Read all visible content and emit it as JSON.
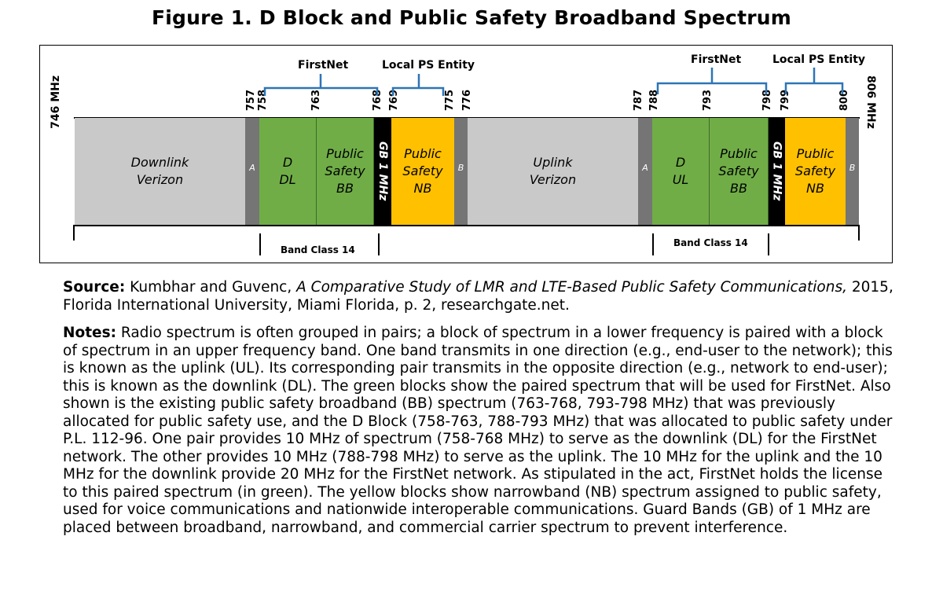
{
  "title": "Figure 1. D Block and Public Safety Broadband Spectrum",
  "edges": {
    "left": "746 MHz",
    "right": "806 MHz"
  },
  "headers": {
    "firstnet_1": "FirstNet",
    "local_1": "Local PS Entity",
    "firstnet_2": "FirstNet",
    "local_2": "Local PS Entity"
  },
  "freqs": {
    "f757": "757",
    "f758": "758",
    "f763": "763",
    "f768": "768",
    "f769": "769",
    "f775": "775",
    "f776": "776",
    "f787": "787",
    "f788": "788",
    "f793": "793",
    "f798": "798",
    "f799": "799",
    "f800": "800"
  },
  "blocks": {
    "downlink_verizon": [
      "Downlink",
      "Verizon"
    ],
    "a1": "A",
    "d_dl": [
      "D",
      "DL"
    ],
    "psbb1": [
      "Public",
      "Safety",
      "BB"
    ],
    "gb1": "GB 1 MHz",
    "psnb1": [
      "Public",
      "Safety",
      "NB"
    ],
    "b1": "B",
    "uplink_verizon": [
      "Uplink",
      "Verizon"
    ],
    "a2": "A",
    "d_ul": [
      "D",
      "UL"
    ],
    "psbb2": [
      "Public",
      "Safety",
      "BB"
    ],
    "gb2": "GB 1 MHz",
    "psnb2": [
      "Public",
      "Safety",
      "NB"
    ],
    "b2": "B"
  },
  "band_class": {
    "left": "Band Class 14",
    "right": "Band Class 14"
  },
  "colors": {
    "gray": "#c9c9c9",
    "guard": "#757575",
    "green": "#70ad47",
    "yellow": "#ffc000",
    "bracket": "#2e75b6"
  },
  "source": {
    "label": "Source:",
    "authors": " Kumbhar and Guvenc, ",
    "work": "A Comparative Study of LMR and LTE-Based Public Safety Communications,",
    "rest": " 2015, Florida International University, Miami Florida, p. 2, researchgate.net."
  },
  "notes": {
    "label": "Notes:",
    "text": " Radio spectrum is often grouped in pairs; a block of spectrum in a lower frequency is paired with a block of spectrum in an upper frequency band. One band transmits in one direction (e.g., end-user to the network); this is known as the uplink (UL). Its corresponding pair transmits in the opposite direction (e.g., network to end-user); this is known as the downlink (DL). The green blocks show the paired spectrum that will be used for FirstNet. Also shown is the existing public safety broadband (BB) spectrum (763-768, 793-798 MHz) that was previously allocated for public safety use, and the D Block (758-763, 788-793 MHz) that was allocated to public safety under P.L. 112-96. One pair provides 10 MHz of spectrum (758-768 MHz) to serve as the downlink (DL) for the FirstNet network. The other provides 10 MHz (788-798 MHz) to serve as the uplink. The 10 MHz for the uplink and the 10 MHz for the downlink provide 20 MHz for the FirstNet network. As stipulated in the act, FirstNet holds the license to this paired spectrum (in green). The yellow blocks show narrowband (NB) spectrum assigned to public safety, used for voice communications and nationwide interoperable communications. Guard Bands (GB) of 1 MHz are placed between broadband, narrowband, and commercial carrier spectrum to prevent interference."
  }
}
